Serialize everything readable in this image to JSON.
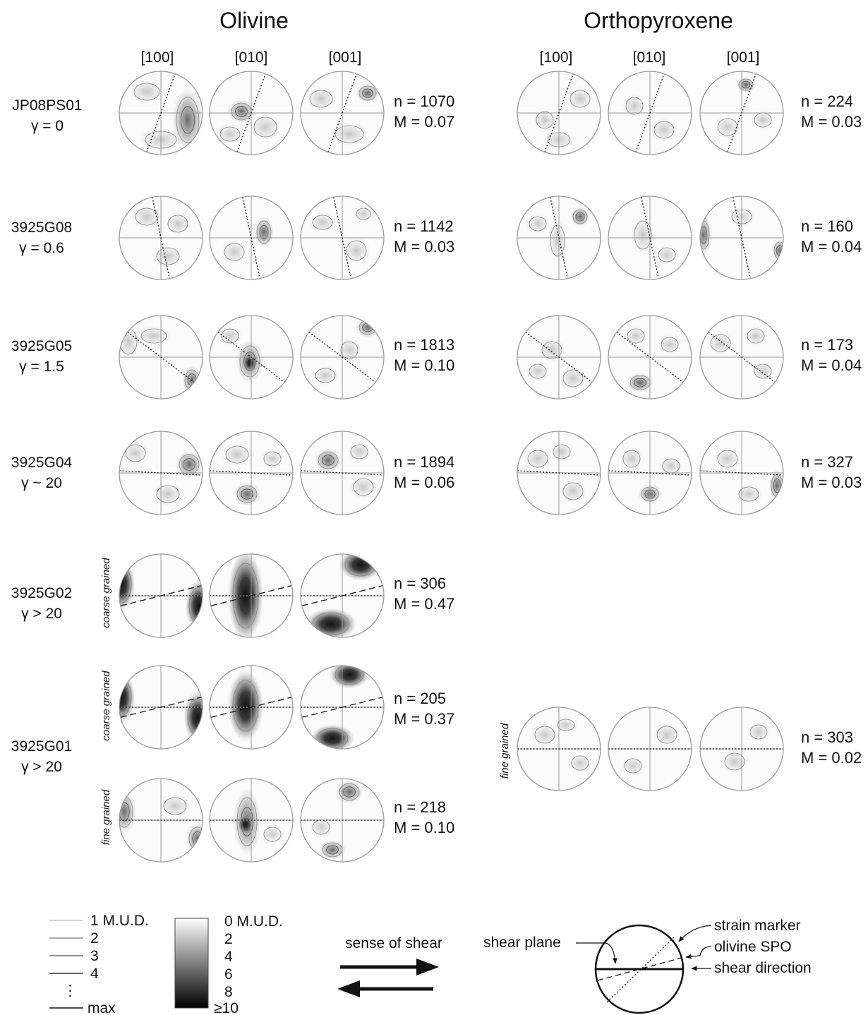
{
  "titles": {
    "olivine": "Olivine",
    "opx": "Orthopyroxene"
  },
  "axes": [
    "[100]",
    "[010]",
    "[001]"
  ],
  "samples": [
    {
      "name": "JP08PS01",
      "gamma": "γ = 0"
    },
    {
      "name": "3925G08",
      "gamma": "γ = 0.6"
    },
    {
      "name": "3925G05",
      "gamma": "γ = 1.5"
    },
    {
      "name": "3925G04",
      "gamma": "γ ~ 20"
    },
    {
      "name": "3925G02",
      "gamma": "γ > 20"
    },
    {
      "name": "3925G01",
      "gamma": "γ > 20"
    }
  ],
  "grain_labels": {
    "g02_ol": "coarse grained",
    "g01_ol_coarse": "coarse grained",
    "g01_ol_fine": "fine grained",
    "g01_opx": "fine grained"
  },
  "stats": {
    "ol": [
      {
        "n": "n = 1070",
        "m": "M = 0.07"
      },
      {
        "n": "n = 1142",
        "m": "M = 0.03"
      },
      {
        "n": "n = 1813",
        "m": "M = 0.10"
      },
      {
        "n": "n = 1894",
        "m": "M = 0.06"
      },
      {
        "n": "n = 306",
        "m": "M = 0.47"
      },
      {
        "n": "n = 205",
        "m": "M = 0.37"
      },
      {
        "n": "n = 218",
        "m": "M = 0.10"
      }
    ],
    "opx": [
      {
        "n": "n = 224",
        "m": "M = 0.03"
      },
      {
        "n": "n = 160",
        "m": "M = 0.04"
      },
      {
        "n": "n = 173",
        "m": "M = 0.04"
      },
      {
        "n": "n = 327",
        "m": "M = 0.03"
      },
      {
        "n": "n = 303",
        "m": "M = 0.02"
      }
    ]
  },
  "legend": {
    "contours": [
      "1 M.U.D.",
      "2",
      "3",
      "4",
      "⋮",
      "max"
    ],
    "scale": [
      "0 M.U.D.",
      "2",
      "4",
      "6",
      "8",
      "≥10"
    ],
    "shear_sense": "sense of shear",
    "schematic": {
      "shear_plane": "shear plane",
      "strain_marker": "strain marker",
      "olivine_spo": "olivine SPO",
      "shear_direction": "shear direction"
    }
  }
}
